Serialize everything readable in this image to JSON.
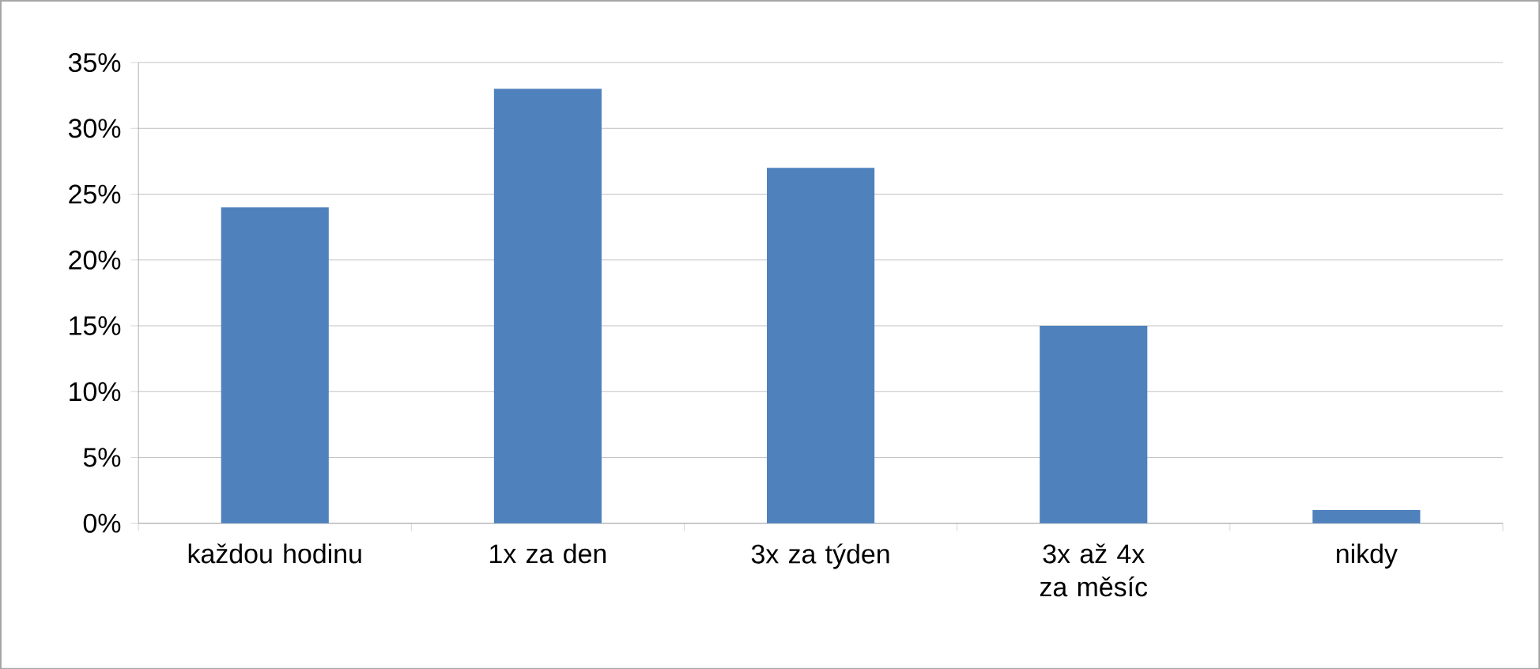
{
  "chart_data": {
    "type": "bar",
    "categories": [
      "každou hodinu",
      "1x za den",
      "3x za týden",
      "3x až 4x za měsíc",
      "nikdy"
    ],
    "values": [
      24,
      33,
      27,
      15,
      1
    ],
    "color": "#4f81bd",
    "ylim": [
      0,
      35
    ],
    "yticks": [
      {
        "value": 0,
        "label": "0%"
      },
      {
        "value": 5,
        "label": "5%"
      },
      {
        "value": 10,
        "label": "10%"
      },
      {
        "value": 15,
        "label": "15%"
      },
      {
        "value": 20,
        "label": "20%"
      },
      {
        "value": 25,
        "label": "25%"
      },
      {
        "value": 30,
        "label": "30%"
      },
      {
        "value": 35,
        "label": "35%"
      }
    ],
    "grid": "y"
  }
}
